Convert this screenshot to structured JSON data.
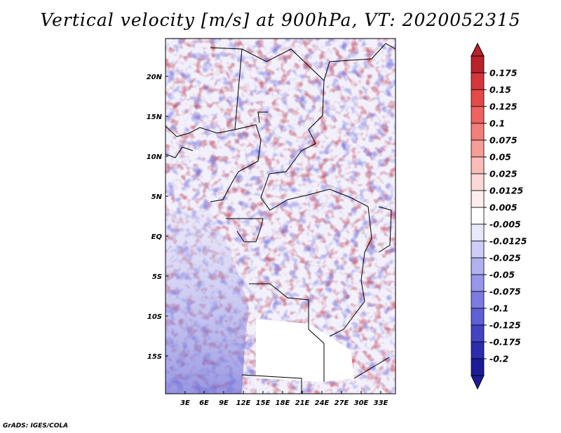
{
  "title": "Vertical velocity [m/s] at 900hPa, VT: 2020052315",
  "footer": "GrADS: IGES/COLA",
  "map": {
    "lon_labels": [
      "3E",
      "6E",
      "9E",
      "12E",
      "15E",
      "18E",
      "21E",
      "24E",
      "27E",
      "30E",
      "33E"
    ],
    "lat_labels": [
      "20N",
      "15N",
      "10N",
      "5N",
      "EQ",
      "5S",
      "10S",
      "15S"
    ]
  },
  "colorbar": {
    "labels": [
      "0.175",
      "0.15",
      "0.125",
      "0.1",
      "0.075",
      "0.05",
      "0.025",
      "0.0125",
      "0.005",
      "-0.005",
      "-0.0125",
      "-0.025",
      "-0.05",
      "-0.075",
      "-0.1",
      "-0.125",
      "-0.175",
      "-0.2"
    ],
    "colors": [
      "#b8222b",
      "#d6363b",
      "#e44a49",
      "#ee6360",
      "#f27f7b",
      "#f59d99",
      "#f9bcb9",
      "#fcd9d7",
      "#feefee",
      "#ffffff",
      "#e8e8fb",
      "#cdcdf6",
      "#b1b1f0",
      "#9696ea",
      "#7b7be2",
      "#5f5fd6",
      "#4343c4",
      "#2c2cae",
      "#1c1c98"
    ]
  }
}
